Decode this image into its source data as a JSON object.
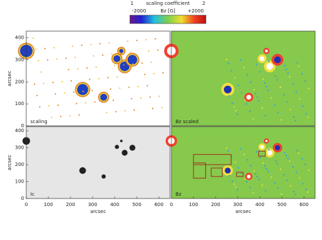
{
  "chart_data": [
    {
      "type": "colorbar",
      "title": "scaling coefficient",
      "xlabel": "Bz [G]",
      "xlim": [
        -2000,
        2000
      ],
      "xticks": [
        -2000,
        {
          "value": 2000,
          "label": "+2000"
        }
      ],
      "x2lim": [
        1,
        2
      ],
      "x2ticks": [
        1,
        2
      ]
    },
    {
      "type": "image",
      "label": "scaling",
      "ylabel": "arcsec",
      "xlim": [
        0,
        650
      ],
      "ylim": [
        0,
        430
      ],
      "yticks": [
        0,
        100,
        200,
        300,
        400
      ],
      "background": "#ffffff"
    },
    {
      "type": "image",
      "label": "Bz scaled",
      "xlim": [
        0,
        650
      ],
      "ylim": [
        0,
        430
      ],
      "background": "#86c94c"
    },
    {
      "type": "image",
      "label": "Ic",
      "xlabel": "arcsec",
      "ylabel": "arcsec",
      "xlim": [
        0,
        650
      ],
      "ylim": [
        0,
        425
      ],
      "xticks": [
        0,
        100,
        200,
        300,
        400,
        500,
        600
      ],
      "yticks": [
        0,
        100,
        200,
        300,
        400
      ],
      "background": "#e6e6e6"
    },
    {
      "type": "image",
      "label": "Bz",
      "xlabel": "arcsec",
      "xlim": [
        0,
        650
      ],
      "ylim": [
        0,
        425
      ],
      "xticks": [
        0,
        100,
        200,
        300,
        400,
        500,
        600
      ],
      "background": "#86c94c"
    }
  ]
}
